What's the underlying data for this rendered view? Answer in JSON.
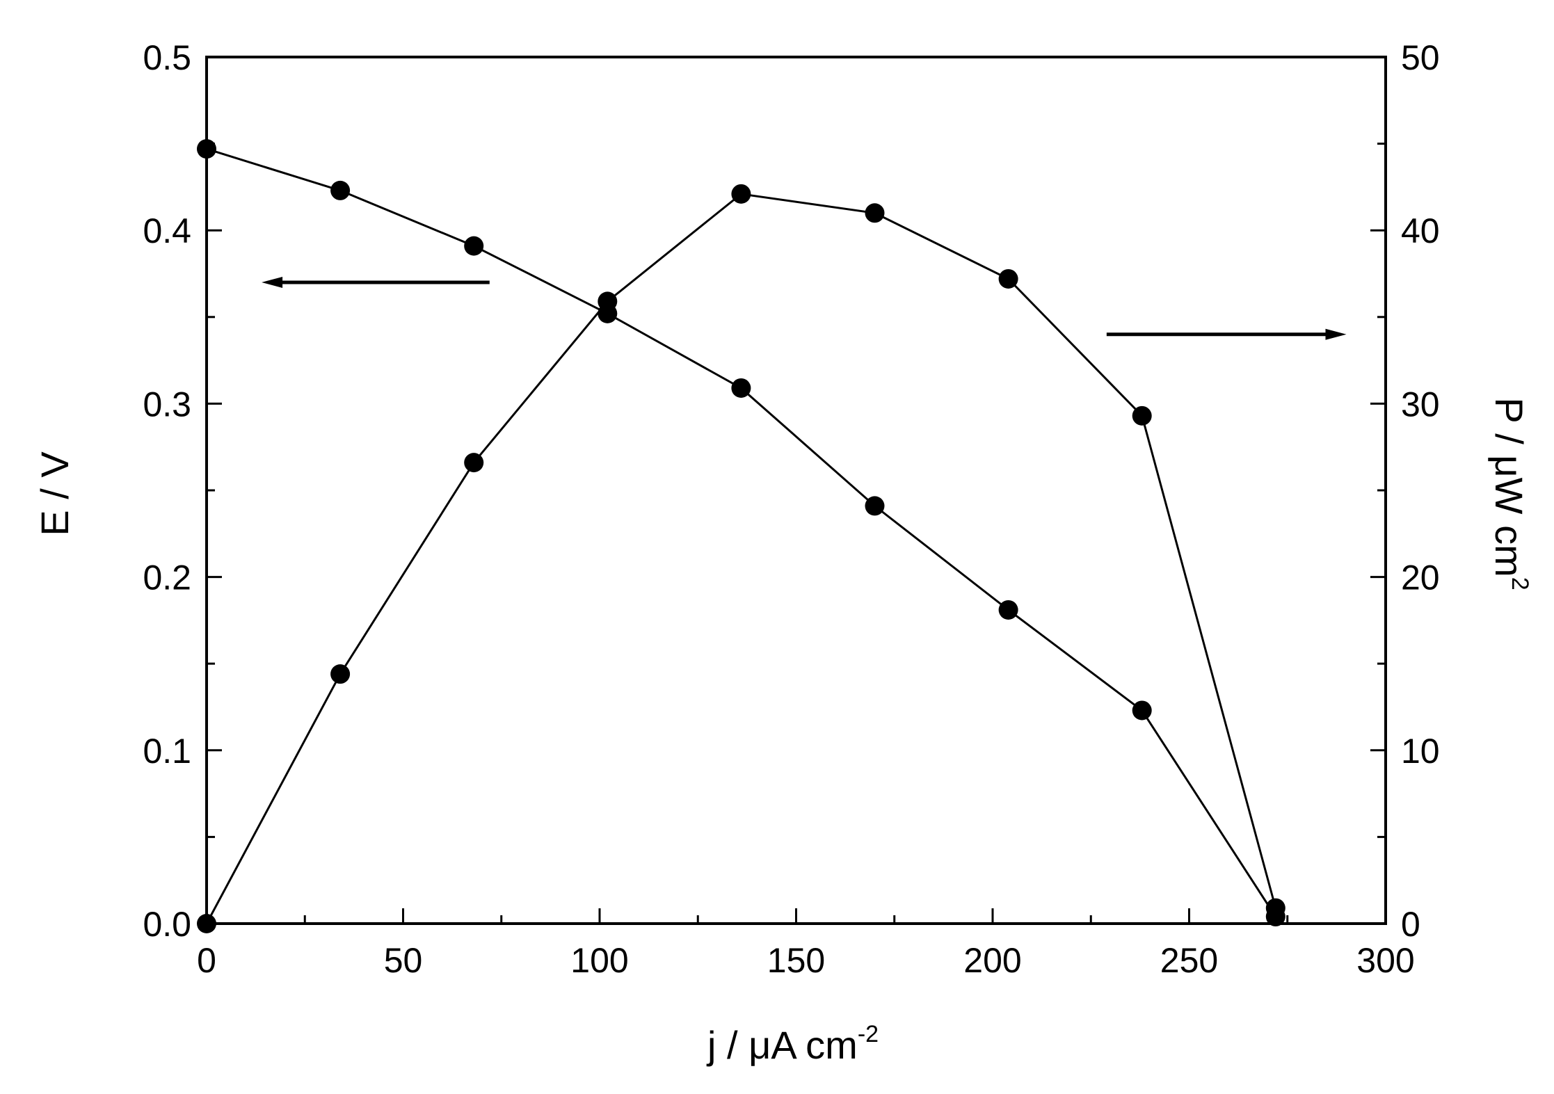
{
  "chart_data": {
    "type": "line",
    "title": "",
    "x": [
      0,
      34,
      68,
      102,
      136,
      170,
      204,
      238,
      272
    ],
    "xlabel": {
      "base": "j / μA cm",
      "sup": "-2"
    },
    "ylabel_left": "E / V",
    "ylabel_right": {
      "base": "P / μW cm",
      "sup": "2"
    },
    "xlim": [
      0,
      300
    ],
    "ylim_left": [
      0,
      0.5
    ],
    "ylim_right": [
      0,
      50
    ],
    "x_ticks": [
      "0",
      "50",
      "100",
      "150",
      "200",
      "250",
      "300"
    ],
    "y_left_ticks": [
      "0.0",
      "0.1",
      "0.2",
      "0.3",
      "0.4",
      "0.5"
    ],
    "y_right_ticks": [
      "0",
      "10",
      "20",
      "30",
      "40",
      "50"
    ],
    "grid": false,
    "legend": "none",
    "series": [
      {
        "axis": "left",
        "values": [
          0.447,
          0.423,
          0.391,
          0.352,
          0.309,
          0.241,
          0.181,
          0.123,
          0.004
        ],
        "arrow_direction": "left"
      },
      {
        "axis": "right",
        "values": [
          0.0,
          14.4,
          26.6,
          35.9,
          42.1,
          41.0,
          37.2,
          29.3,
          0.9
        ],
        "arrow_direction": "right"
      }
    ],
    "colors": {
      "line": "#000000",
      "marker": "#000000",
      "axis": "#000000"
    }
  }
}
